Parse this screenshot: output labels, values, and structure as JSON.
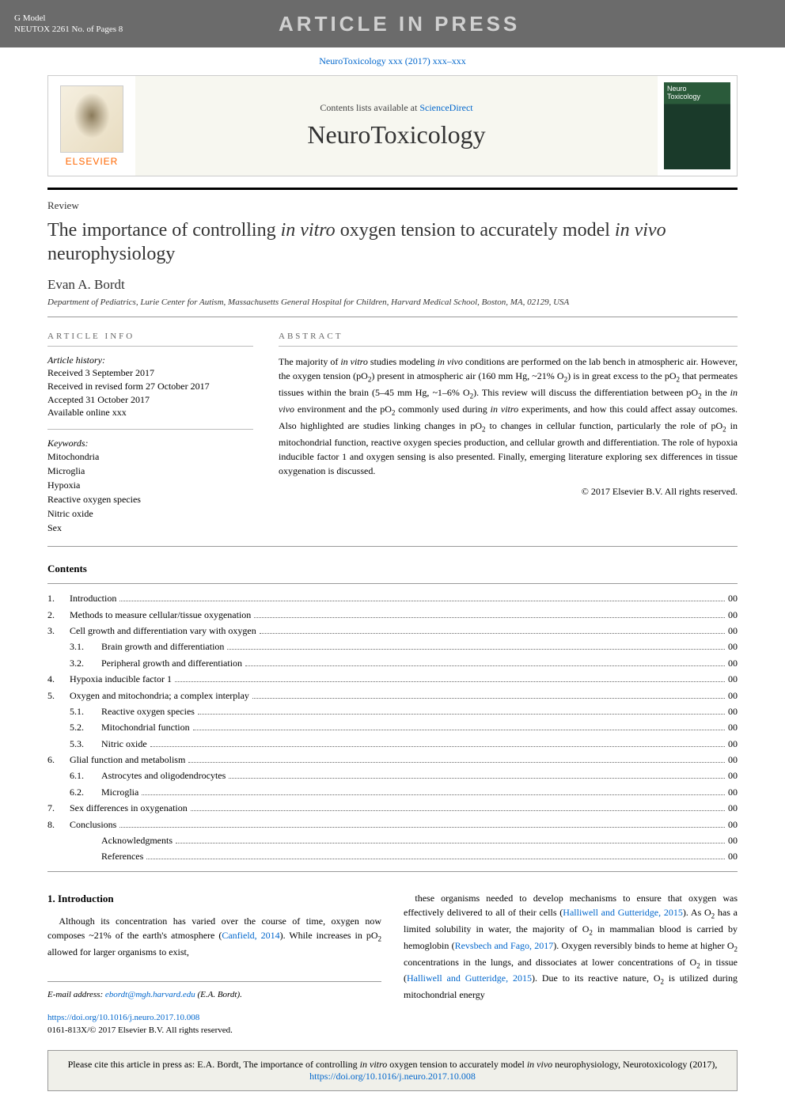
{
  "grayBar": {
    "gModel": "G Model",
    "code": "NEUTOX 2261 No. of Pages 8",
    "watermark": "ARTICLE IN PRESS"
  },
  "citationLine": "NeuroToxicology xxx (2017) xxx–xxx",
  "header": {
    "contentsPrefix": "Contents lists available at ",
    "contentsLink": "ScienceDirect",
    "journalTitle": "NeuroToxicology",
    "publisher": "ELSEVIER"
  },
  "article": {
    "type": "Review",
    "titleParts": {
      "p1": "The importance of controlling ",
      "i1": "in vitro",
      "p2": " oxygen tension to accurately model ",
      "i2": "in vivo",
      "p3": " neurophysiology"
    },
    "author": "Evan A. Bordt",
    "affiliation": "Department of Pediatrics, Lurie Center for Autism, Massachusetts General Hospital for Children, Harvard Medical School, Boston, MA, 02129, USA"
  },
  "articleInfo": {
    "heading": "ARTICLE INFO",
    "historyLabel": "Article history:",
    "history": "Received 3 September 2017\nReceived in revised form 27 October 2017\nAccepted 31 October 2017\nAvailable online xxx",
    "keywordsLabel": "Keywords:",
    "keywords": [
      "Mitochondria",
      "Microglia",
      "Hypoxia",
      "Reactive oxygen species",
      "Nitric oxide",
      "Sex"
    ]
  },
  "abstract": {
    "heading": "ABSTRACT",
    "text": "The majority of in vitro studies modeling in vivo conditions are performed on the lab bench in atmospheric air. However, the oxygen tension (pO₂) present in atmospheric air (160 mm Hg, ~21% O₂) is in great excess to the pO₂ that permeates tissues within the brain (5–45 mm Hg, ~1–6% O₂). This review will discuss the differentiation between pO₂ in the in vivo environment and the pO₂ commonly used during in vitro experiments, and how this could affect assay outcomes. Also highlighted are studies linking changes in pO₂ to changes in cellular function, particularly the role of pO₂ in mitochondrial function, reactive oxygen species production, and cellular growth and differentiation. The role of hypoxia inducible factor 1 and oxygen sensing is also presented. Finally, emerging literature exploring sex differences in tissue oxygenation is discussed.",
    "copyright": "© 2017 Elsevier B.V. All rights reserved."
  },
  "contentsHeading": "Contents",
  "toc": [
    {
      "num": "1.",
      "title": "Introduction",
      "page": "00",
      "level": 1
    },
    {
      "num": "2.",
      "title": "Methods to measure cellular/tissue oxygenation",
      "page": "00",
      "level": 1
    },
    {
      "num": "3.",
      "title": "Cell growth and differentiation vary with oxygen",
      "page": "00",
      "level": 1
    },
    {
      "num": "3.1.",
      "title": "Brain growth and differentiation",
      "page": "00",
      "level": 2
    },
    {
      "num": "3.2.",
      "title": "Peripheral growth and differentiation",
      "page": "00",
      "level": 2
    },
    {
      "num": "4.",
      "title": "Hypoxia inducible factor 1",
      "page": "00",
      "level": 1
    },
    {
      "num": "5.",
      "title": "Oxygen and mitochondria; a complex interplay",
      "page": "00",
      "level": 1
    },
    {
      "num": "5.1.",
      "title": "Reactive oxygen species",
      "page": "00",
      "level": 2
    },
    {
      "num": "5.2.",
      "title": "Mitochondrial function",
      "page": "00",
      "level": 2
    },
    {
      "num": "5.3.",
      "title": "Nitric oxide",
      "page": "00",
      "level": 2
    },
    {
      "num": "6.",
      "title": "Glial function and metabolism",
      "page": "00",
      "level": 1
    },
    {
      "num": "6.1.",
      "title": "Astrocytes and oligodendrocytes",
      "page": "00",
      "level": 2
    },
    {
      "num": "6.2.",
      "title": "Microglia",
      "page": "00",
      "level": 2
    },
    {
      "num": "7.",
      "title": "Sex differences in oxygenation",
      "page": "00",
      "level": 1
    },
    {
      "num": "8.",
      "title": "Conclusions",
      "page": "00",
      "level": 1
    },
    {
      "num": "",
      "title": "Acknowledgments",
      "page": "00",
      "level": 2
    },
    {
      "num": "",
      "title": "References",
      "page": "00",
      "level": 2
    }
  ],
  "intro": {
    "heading": "1. Introduction",
    "col1": "Although its concentration has varied over the course of time, oxygen now composes ~21% of the earth's atmosphere (Canfield, 2014). While increases in pO₂ allowed for larger organisms to exist,",
    "col2": "these organisms needed to develop mechanisms to ensure that oxygen was effectively delivered to all of their cells (Halliwell and Gutteridge, 2015). As O₂ has a limited solubility in water, the majority of O₂ in mammalian blood is carried by hemoglobin (Revsbech and Fago, 2017). Oxygen reversibly binds to heme at higher O₂ concentrations in the lungs, and dissociates at lower concentrations of O₂ in tissue (Halliwell and Gutteridge, 2015). Due to its reactive nature, O₂ is utilized during mitochondrial energy"
  },
  "footer": {
    "emailLabel": "E-mail address: ",
    "email": "ebordt@mgh.harvard.edu",
    "emailSuffix": " (E.A. Bordt).",
    "doi": "https://doi.org/10.1016/j.neuro.2017.10.008",
    "issn": "0161-813X/© 2017 Elsevier B.V. All rights reserved."
  },
  "citeBox": {
    "prefix": "Please cite this article in press as: E.A. Bordt, The importance of controlling ",
    "i1": "in vitro",
    "mid1": " oxygen tension to accurately model ",
    "i2": "in vivo",
    "mid2": " neurophysiology, Neurotoxicology (2017), ",
    "link": "https://doi.org/10.1016/j.neuro.2017.10.008"
  },
  "colors": {
    "linkColor": "#0066cc",
    "grayBarBg": "#6b6b6b",
    "elsevierOrange": "#ff6600"
  }
}
